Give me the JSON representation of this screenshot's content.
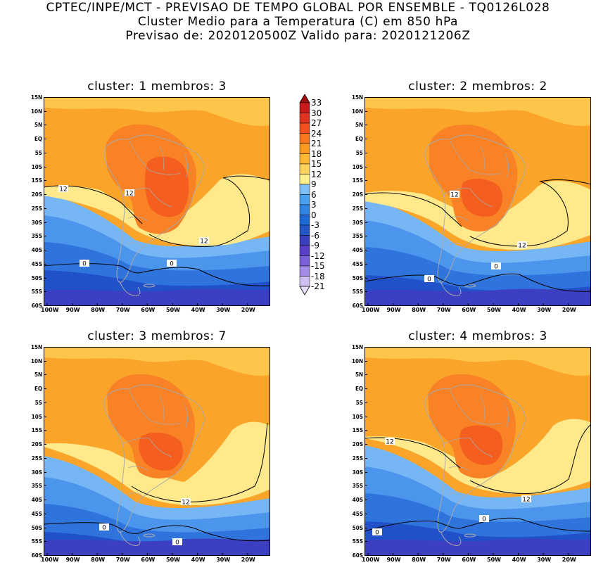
{
  "header": {
    "line1": "CPTEC/INPE/MCT - PREVISAO DE TEMPO GLOBAL POR ENSEMBLE - TQ0126L028",
    "line2": "Cluster Medio para a Temperatura (C) em 850 hPa",
    "line3": "Previsao de: 2020120500Z   Valido para: 2020121206Z"
  },
  "axes": {
    "y_ticks": [
      "15N",
      "10N",
      "5N",
      "EQ",
      "5S",
      "10S",
      "15S",
      "20S",
      "25S",
      "30S",
      "35S",
      "40S",
      "45S",
      "50S",
      "55S",
      "60S"
    ],
    "x_ticks": [
      "100W",
      "90W",
      "80W",
      "70W",
      "60W",
      "50W",
      "40W",
      "30W",
      "20W"
    ]
  },
  "colorbar": {
    "labels": [
      "33",
      "30",
      "27",
      "24",
      "21",
      "18",
      "15",
      "12",
      "9",
      "6",
      "3",
      "0",
      "-3",
      "-6",
      "-9",
      "-12",
      "-15",
      "-18",
      "-21"
    ],
    "colors": [
      "#a00e0e",
      "#c81a1a",
      "#e03422",
      "#f24f1c",
      "#f9761c",
      "#fb9a1e",
      "#fdb733",
      "#fed35a",
      "#fff08c",
      "#7dbef7",
      "#4aa0f0",
      "#2f84e4",
      "#1d6ad6",
      "#2455c6",
      "#3a3fbf",
      "#5a3fc8",
      "#7b5fd8",
      "#a48ce6",
      "#cfbff3",
      "#e8e0fa"
    ]
  },
  "clusters": [
    {
      "title": "cluster: 1   membros: 3",
      "contour_labels": [
        "12",
        "12",
        "12",
        "0",
        "0"
      ]
    },
    {
      "title": "cluster: 2   membros: 2",
      "contour_labels": [
        "12",
        "12",
        "0",
        "0"
      ]
    },
    {
      "title": "cluster: 3   membros: 7",
      "contour_labels": [
        "12",
        "0",
        "0"
      ]
    },
    {
      "title": "cluster: 4   membros: 3",
      "contour_labels": [
        "12",
        "12",
        "0",
        "0"
      ]
    }
  ],
  "chart_data": {
    "type": "heatmap",
    "variable": "Temperature at 850 hPa",
    "units": "C",
    "x_range": [
      "100W",
      "10W"
    ],
    "y_range": [
      "60S",
      "15N"
    ],
    "contour_levels": [
      0,
      12
    ],
    "color_scale": {
      "min": -21,
      "max": 33,
      "step": 3
    },
    "panels": [
      {
        "cluster": 1,
        "members": 3
      },
      {
        "cluster": 2,
        "members": 2
      },
      {
        "cluster": 3,
        "members": 7
      },
      {
        "cluster": 4,
        "members": 3
      }
    ]
  }
}
